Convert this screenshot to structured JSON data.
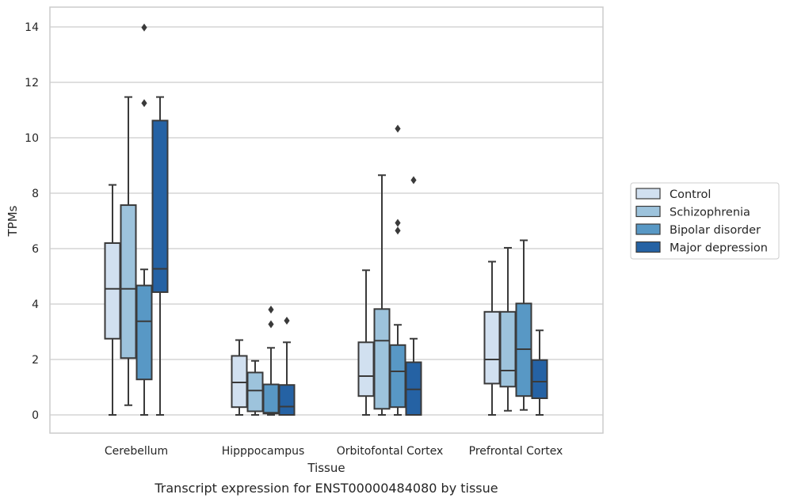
{
  "caption": "Transcript expression for ENST00000484080 by tissue",
  "chart_data": {
    "type": "box",
    "xlabel": "Tissue",
    "ylabel": "TPMs",
    "ylim": [
      -0.65,
      14.7
    ],
    "yticks": [
      0,
      2,
      4,
      6,
      8,
      10,
      12,
      14
    ],
    "grid": "horizontal",
    "legend_position": "right",
    "categories": [
      "Cerebellum",
      "Hipppocampus",
      "Orbitofontal Cortex",
      "Prefrontal Cortex"
    ],
    "series": [
      {
        "name": "Control",
        "color": "#d1e0f0",
        "boxes": [
          {
            "min": 0,
            "q1": 2.75,
            "median": 4.55,
            "q3": 6.2,
            "max": 8.3,
            "outliers": []
          },
          {
            "min": 0,
            "q1": 0.28,
            "median": 1.17,
            "q3": 2.13,
            "max": 2.7,
            "outliers": []
          },
          {
            "min": 0,
            "q1": 0.68,
            "median": 1.4,
            "q3": 2.62,
            "max": 5.22,
            "outliers": []
          },
          {
            "min": 0,
            "q1": 1.13,
            "median": 2.0,
            "q3": 3.72,
            "max": 5.53,
            "outliers": []
          }
        ]
      },
      {
        "name": "Schizophrenia",
        "color": "#9dc3dc",
        "boxes": [
          {
            "min": 0.35,
            "q1": 2.05,
            "median": 4.55,
            "q3": 7.57,
            "max": 11.47,
            "outliers": []
          },
          {
            "min": 0,
            "q1": 0.13,
            "median": 0.88,
            "q3": 1.53,
            "max": 1.95,
            "outliers": []
          },
          {
            "min": 0,
            "q1": 0.22,
            "median": 2.68,
            "q3": 3.82,
            "max": 8.65,
            "outliers": []
          },
          {
            "min": 0.15,
            "q1": 1.02,
            "median": 1.6,
            "q3": 3.72,
            "max": 6.03,
            "outliers": []
          }
        ]
      },
      {
        "name": "Bipolar disorder",
        "color": "#5898c5",
        "boxes": [
          {
            "min": 0,
            "q1": 1.28,
            "median": 3.38,
            "q3": 4.67,
            "max": 5.25,
            "outliers": [
              11.25,
              13.98
            ]
          },
          {
            "min": 0,
            "q1": 0.05,
            "median": 0.08,
            "q3": 1.1,
            "max": 2.42,
            "outliers": [
              3.27,
              3.8
            ]
          },
          {
            "min": 0,
            "q1": 0.28,
            "median": 1.57,
            "q3": 2.52,
            "max": 3.25,
            "outliers": [
              6.65,
              6.93,
              10.33
            ]
          },
          {
            "min": 0.18,
            "q1": 0.68,
            "median": 2.37,
            "q3": 4.02,
            "max": 6.3,
            "outliers": []
          }
        ]
      },
      {
        "name": "Major depression",
        "color": "#2562a4",
        "boxes": [
          {
            "min": 0,
            "q1": 4.43,
            "median": 5.27,
            "q3": 10.62,
            "max": 11.47,
            "outliers": []
          },
          {
            "min": 0,
            "q1": 0,
            "median": 0.3,
            "q3": 1.08,
            "max": 2.62,
            "outliers": [
              3.4
            ]
          },
          {
            "min": 0,
            "q1": 0,
            "median": 0.92,
            "q3": 1.9,
            "max": 2.75,
            "outliers": [
              8.47
            ]
          },
          {
            "min": 0,
            "q1": 0.6,
            "median": 1.2,
            "q3": 1.98,
            "max": 3.05,
            "outliers": []
          }
        ]
      }
    ]
  }
}
